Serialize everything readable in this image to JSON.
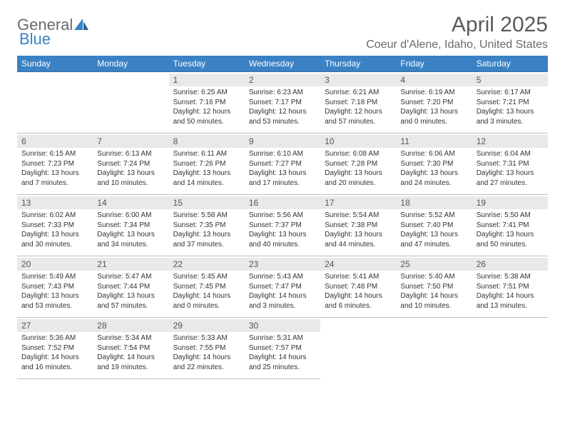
{
  "logo": {
    "text1": "General",
    "text2": "Blue"
  },
  "title": "April 2025",
  "location": "Coeur d'Alene, Idaho, United States",
  "colors": {
    "header_bg": "#3a82c4",
    "header_text": "#ffffff",
    "daynum_bg": "#e9e9e9",
    "row_divider": "#3a6ea5",
    "text": "#333333",
    "muted": "#6b6b6b"
  },
  "weekdays": [
    "Sunday",
    "Monday",
    "Tuesday",
    "Wednesday",
    "Thursday",
    "Friday",
    "Saturday"
  ],
  "weeks": [
    [
      null,
      null,
      {
        "n": "1",
        "sunrise": "6:25 AM",
        "sunset": "7:16 PM",
        "daylight": "12 hours and 50 minutes."
      },
      {
        "n": "2",
        "sunrise": "6:23 AM",
        "sunset": "7:17 PM",
        "daylight": "12 hours and 53 minutes."
      },
      {
        "n": "3",
        "sunrise": "6:21 AM",
        "sunset": "7:18 PM",
        "daylight": "12 hours and 57 minutes."
      },
      {
        "n": "4",
        "sunrise": "6:19 AM",
        "sunset": "7:20 PM",
        "daylight": "13 hours and 0 minutes."
      },
      {
        "n": "5",
        "sunrise": "6:17 AM",
        "sunset": "7:21 PM",
        "daylight": "13 hours and 3 minutes."
      }
    ],
    [
      {
        "n": "6",
        "sunrise": "6:15 AM",
        "sunset": "7:23 PM",
        "daylight": "13 hours and 7 minutes."
      },
      {
        "n": "7",
        "sunrise": "6:13 AM",
        "sunset": "7:24 PM",
        "daylight": "13 hours and 10 minutes."
      },
      {
        "n": "8",
        "sunrise": "6:11 AM",
        "sunset": "7:26 PM",
        "daylight": "13 hours and 14 minutes."
      },
      {
        "n": "9",
        "sunrise": "6:10 AM",
        "sunset": "7:27 PM",
        "daylight": "13 hours and 17 minutes."
      },
      {
        "n": "10",
        "sunrise": "6:08 AM",
        "sunset": "7:28 PM",
        "daylight": "13 hours and 20 minutes."
      },
      {
        "n": "11",
        "sunrise": "6:06 AM",
        "sunset": "7:30 PM",
        "daylight": "13 hours and 24 minutes."
      },
      {
        "n": "12",
        "sunrise": "6:04 AM",
        "sunset": "7:31 PM",
        "daylight": "13 hours and 27 minutes."
      }
    ],
    [
      {
        "n": "13",
        "sunrise": "6:02 AM",
        "sunset": "7:33 PM",
        "daylight": "13 hours and 30 minutes."
      },
      {
        "n": "14",
        "sunrise": "6:00 AM",
        "sunset": "7:34 PM",
        "daylight": "13 hours and 34 minutes."
      },
      {
        "n": "15",
        "sunrise": "5:58 AM",
        "sunset": "7:35 PM",
        "daylight": "13 hours and 37 minutes."
      },
      {
        "n": "16",
        "sunrise": "5:56 AM",
        "sunset": "7:37 PM",
        "daylight": "13 hours and 40 minutes."
      },
      {
        "n": "17",
        "sunrise": "5:54 AM",
        "sunset": "7:38 PM",
        "daylight": "13 hours and 44 minutes."
      },
      {
        "n": "18",
        "sunrise": "5:52 AM",
        "sunset": "7:40 PM",
        "daylight": "13 hours and 47 minutes."
      },
      {
        "n": "19",
        "sunrise": "5:50 AM",
        "sunset": "7:41 PM",
        "daylight": "13 hours and 50 minutes."
      }
    ],
    [
      {
        "n": "20",
        "sunrise": "5:49 AM",
        "sunset": "7:43 PM",
        "daylight": "13 hours and 53 minutes."
      },
      {
        "n": "21",
        "sunrise": "5:47 AM",
        "sunset": "7:44 PM",
        "daylight": "13 hours and 57 minutes."
      },
      {
        "n": "22",
        "sunrise": "5:45 AM",
        "sunset": "7:45 PM",
        "daylight": "14 hours and 0 minutes."
      },
      {
        "n": "23",
        "sunrise": "5:43 AM",
        "sunset": "7:47 PM",
        "daylight": "14 hours and 3 minutes."
      },
      {
        "n": "24",
        "sunrise": "5:41 AM",
        "sunset": "7:48 PM",
        "daylight": "14 hours and 6 minutes."
      },
      {
        "n": "25",
        "sunrise": "5:40 AM",
        "sunset": "7:50 PM",
        "daylight": "14 hours and 10 minutes."
      },
      {
        "n": "26",
        "sunrise": "5:38 AM",
        "sunset": "7:51 PM",
        "daylight": "14 hours and 13 minutes."
      }
    ],
    [
      {
        "n": "27",
        "sunrise": "5:36 AM",
        "sunset": "7:52 PM",
        "daylight": "14 hours and 16 minutes."
      },
      {
        "n": "28",
        "sunrise": "5:34 AM",
        "sunset": "7:54 PM",
        "daylight": "14 hours and 19 minutes."
      },
      {
        "n": "29",
        "sunrise": "5:33 AM",
        "sunset": "7:55 PM",
        "daylight": "14 hours and 22 minutes."
      },
      {
        "n": "30",
        "sunrise": "5:31 AM",
        "sunset": "7:57 PM",
        "daylight": "14 hours and 25 minutes."
      },
      null,
      null,
      null
    ]
  ],
  "labels": {
    "sunrise": "Sunrise:",
    "sunset": "Sunset:",
    "daylight": "Daylight:"
  }
}
